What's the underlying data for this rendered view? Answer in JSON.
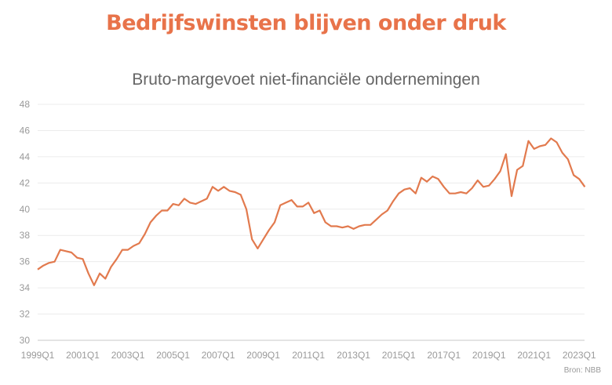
{
  "header": {
    "title": "Bedrijfswinsten blijven onder druk"
  },
  "chart_data": {
    "type": "line",
    "title": "Bruto-margevoet niet-financiële ondernemingen",
    "xlabel": "",
    "ylabel": "",
    "ylim": [
      30,
      48
    ],
    "y_ticks": [
      30,
      32,
      34,
      36,
      38,
      40,
      42,
      44,
      46,
      48
    ],
    "x_tick_labels": [
      "1999Q1",
      "2001Q1",
      "2003Q1",
      "2005Q1",
      "2007Q1",
      "2009Q1",
      "2011Q1",
      "2013Q1",
      "2015Q1",
      "2017Q1",
      "2019Q1",
      "2021Q1",
      "2023Q1"
    ],
    "start": "1999Q1",
    "frequency": "quarterly",
    "grid": true,
    "series": [
      {
        "name": "Bruto-margevoet",
        "color": "#e27a4e",
        "values": [
          35.4,
          35.7,
          35.9,
          36.0,
          36.9,
          36.8,
          36.7,
          36.3,
          36.2,
          35.1,
          34.2,
          35.1,
          34.7,
          35.6,
          36.2,
          36.9,
          36.9,
          37.2,
          37.4,
          38.1,
          39.0,
          39.5,
          39.9,
          39.9,
          40.4,
          40.3,
          40.8,
          40.5,
          40.4,
          40.6,
          40.8,
          41.7,
          41.4,
          41.7,
          41.4,
          41.3,
          41.1,
          40.0,
          37.7,
          37.0,
          37.7,
          38.4,
          39.0,
          40.3,
          40.5,
          40.7,
          40.2,
          40.2,
          40.5,
          39.7,
          39.9,
          39.0,
          38.7,
          38.7,
          38.6,
          38.7,
          38.5,
          38.7,
          38.8,
          38.8,
          39.2,
          39.6,
          39.9,
          40.6,
          41.2,
          41.5,
          41.6,
          41.2,
          42.4,
          42.1,
          42.5,
          42.3,
          41.7,
          41.2,
          41.2,
          41.3,
          41.2,
          41.6,
          42.2,
          41.7,
          41.8,
          42.3,
          42.9,
          44.2,
          41.0,
          43.0,
          43.3,
          45.2,
          44.6,
          44.8,
          44.9,
          45.4,
          45.1,
          44.3,
          43.8,
          42.6,
          42.3,
          41.7
        ]
      }
    ]
  },
  "source": "Bron: NBB"
}
